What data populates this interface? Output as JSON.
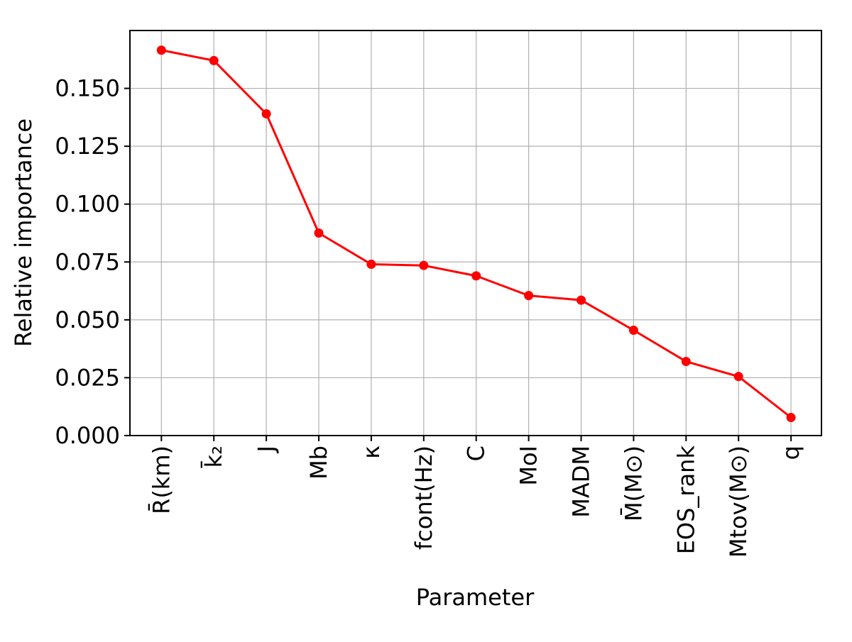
{
  "chart_data": {
    "type": "line",
    "categories": [
      "R̄(km)",
      "k̄₂",
      "J",
      "Mb",
      "κ",
      "fcont(Hz)",
      "C",
      "MoI",
      "MADM",
      "M̄(M⊙)",
      "EOS_rank",
      "Mtov(M⊙)",
      "q"
    ],
    "series": [
      {
        "values": [
          0.1665,
          0.162,
          0.139,
          0.0875,
          0.074,
          0.0735,
          0.069,
          0.0605,
          0.0585,
          0.0455,
          0.032,
          0.0255,
          0.0078
        ]
      }
    ],
    "xlabel": "Parameter",
    "ylabel": "Relative importance",
    "ylim": [
      0.0,
      0.175
    ],
    "yticks": [
      "0.000",
      "0.025",
      "0.050",
      "0.075",
      "0.100",
      "0.125",
      "0.150"
    ],
    "ytick_values": [
      0.0,
      0.025,
      0.05,
      0.075,
      0.1,
      0.125,
      0.15
    ],
    "grid": true,
    "line_color": "#ff0000",
    "marker_color": "#ff0000"
  }
}
